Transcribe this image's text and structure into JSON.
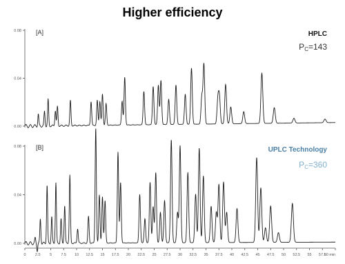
{
  "page": {
    "title": "Higher efficiency"
  },
  "colors": {
    "trace": "#1a1a1a",
    "axis": "#555555",
    "uplc_label": "#4a7fa6",
    "uplc_pc": "#7fb0d0",
    "hplc_label": "#111111"
  },
  "chart_data": [
    {
      "type": "line",
      "panel_label": "[A]",
      "series_label": "HPLC",
      "pc_prefix": "P",
      "pc_sub": "C",
      "pc_suffix": "=143",
      "xlim": [
        0,
        60
      ],
      "ylim": [
        0,
        0.08
      ],
      "yticks": [
        "0.00",
        "0.04",
        "0.08"
      ],
      "grid": false,
      "baseline_drift": 0.003,
      "peaks": [
        {
          "x": 2.6,
          "h": 0.01
        },
        {
          "x": 3.8,
          "h": 0.012
        },
        {
          "x": 4.5,
          "h": 0.022
        },
        {
          "x": 5.9,
          "h": 0.013
        },
        {
          "x": 6.3,
          "h": 0.016
        },
        {
          "x": 8.8,
          "h": 0.021
        },
        {
          "x": 12.8,
          "h": 0.02
        },
        {
          "x": 14.0,
          "h": 0.021
        },
        {
          "x": 14.5,
          "h": 0.02
        },
        {
          "x": 15.0,
          "h": 0.026
        },
        {
          "x": 15.7,
          "h": 0.018
        },
        {
          "x": 18.8,
          "h": 0.02
        },
        {
          "x": 19.3,
          "h": 0.04
        },
        {
          "x": 23.0,
          "h": 0.028
        },
        {
          "x": 24.8,
          "h": 0.032
        },
        {
          "x": 25.8,
          "h": 0.033
        },
        {
          "x": 26.3,
          "h": 0.037
        },
        {
          "x": 27.8,
          "h": 0.021
        },
        {
          "x": 29.2,
          "h": 0.033
        },
        {
          "x": 31.0,
          "h": 0.025
        },
        {
          "x": 32.2,
          "h": 0.047
        },
        {
          "x": 34.2,
          "h": 0.023
        },
        {
          "x": 34.6,
          "h": 0.05
        },
        {
          "x": 37.3,
          "h": 0.02
        },
        {
          "x": 37.6,
          "h": 0.022
        },
        {
          "x": 38.8,
          "h": 0.033
        },
        {
          "x": 39.8,
          "h": 0.014
        },
        {
          "x": 42.3,
          "h": 0.01
        },
        {
          "x": 45.8,
          "h": 0.042
        },
        {
          "x": 48.2,
          "h": 0.013
        },
        {
          "x": 52.0,
          "h": 0.004
        },
        {
          "x": 58.0,
          "h": 0.003
        }
      ]
    },
    {
      "type": "line",
      "panel_label": "[B]",
      "series_label": "UPLC Technology",
      "pc_prefix": "P",
      "pc_sub": "C",
      "pc_suffix": "=360",
      "xlabel": "",
      "xlim": [
        0,
        60
      ],
      "ylim": [
        0,
        0.08
      ],
      "yticks": [
        "0.00",
        "0.04",
        "0.08"
      ],
      "xticks": [
        "0",
        "2.5",
        "5",
        "7.5",
        "10",
        "12.5",
        "15",
        "17.5",
        "20",
        "22.5",
        "25",
        "27.5",
        "30",
        "32.5",
        "35",
        "37.5",
        "40",
        "42.5",
        "45",
        "47.5",
        "50",
        "52.5",
        "55",
        "57.5",
        "60 min"
      ],
      "grid": false,
      "baseline_drift": 0.001,
      "dip": {
        "x": 2.4,
        "h": -0.006
      },
      "peaks": [
        {
          "x": 2.0,
          "h": 0.004
        },
        {
          "x": 3.0,
          "h": 0.02
        },
        {
          "x": 4.3,
          "h": 0.048
        },
        {
          "x": 5.2,
          "h": 0.022
        },
        {
          "x": 6.0,
          "h": 0.05
        },
        {
          "x": 7.0,
          "h": 0.02
        },
        {
          "x": 7.7,
          "h": 0.031
        },
        {
          "x": 8.7,
          "h": 0.056
        },
        {
          "x": 10.2,
          "h": 0.012
        },
        {
          "x": 12.3,
          "h": 0.022
        },
        {
          "x": 13.7,
          "h": 0.095
        },
        {
          "x": 14.4,
          "h": 0.04
        },
        {
          "x": 15.0,
          "h": 0.038
        },
        {
          "x": 15.5,
          "h": 0.035
        },
        {
          "x": 18.0,
          "h": 0.075
        },
        {
          "x": 18.5,
          "h": 0.05
        },
        {
          "x": 22.2,
          "h": 0.04
        },
        {
          "x": 23.2,
          "h": 0.02
        },
        {
          "x": 24.2,
          "h": 0.05
        },
        {
          "x": 24.8,
          "h": 0.03
        },
        {
          "x": 25.3,
          "h": 0.058
        },
        {
          "x": 26.2,
          "h": 0.025
        },
        {
          "x": 27.0,
          "h": 0.035
        },
        {
          "x": 28.3,
          "h": 0.085
        },
        {
          "x": 29.5,
          "h": 0.025
        },
        {
          "x": 30.0,
          "h": 0.08
        },
        {
          "x": 31.5,
          "h": 0.058
        },
        {
          "x": 33.0,
          "h": 0.04
        },
        {
          "x": 33.7,
          "h": 0.078
        },
        {
          "x": 34.5,
          "h": 0.055
        },
        {
          "x": 36.0,
          "h": 0.03
        },
        {
          "x": 37.0,
          "h": 0.025
        },
        {
          "x": 37.5,
          "h": 0.048
        },
        {
          "x": 38.4,
          "h": 0.05
        },
        {
          "x": 39.0,
          "h": 0.025
        },
        {
          "x": 41.0,
          "h": 0.028
        },
        {
          "x": 44.8,
          "h": 0.07
        },
        {
          "x": 45.6,
          "h": 0.045
        },
        {
          "x": 46.5,
          "h": 0.012
        },
        {
          "x": 47.5,
          "h": 0.03
        },
        {
          "x": 49.0,
          "h": 0.008
        },
        {
          "x": 51.7,
          "h": 0.032
        }
      ]
    }
  ]
}
